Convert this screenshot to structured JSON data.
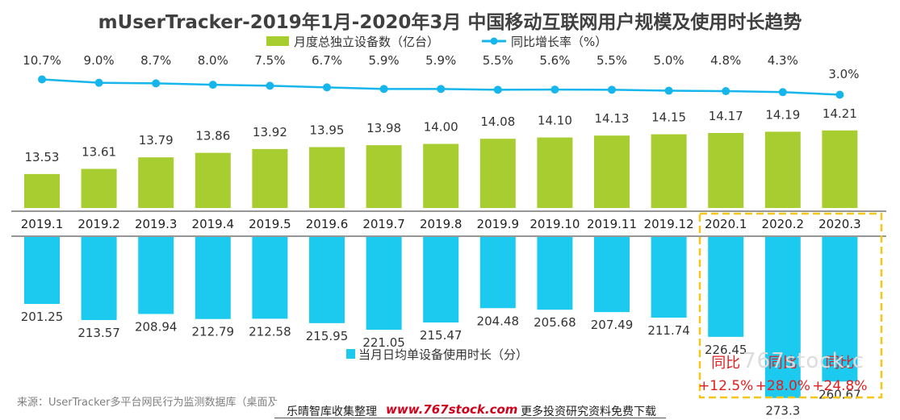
{
  "title": "mUserTracker-2019年1月-2020年3月 中国移动互联网用户规模及使用时长趋势",
  "source": "来源：UserTracker多平台网民行为监测数据库（桌面及",
  "footer": {
    "text1": "乐晴智库收集整理",
    "url": "www.767stock.com",
    "text2": "更多投资研究资料免费下载"
  },
  "watermark": "767stock.c",
  "colors": {
    "green": "#a8cd30",
    "blue": "#1ccaf0",
    "line": "#16b6ec",
    "highlight": "#f5c518",
    "red": "#e21d1d"
  },
  "chart_data": {
    "type": "bar",
    "categories": [
      "2019.1",
      "2019.2",
      "2019.3",
      "2019.4",
      "2019.5",
      "2019.6",
      "2019.7",
      "2019.8",
      "2019.9",
      "2019.10",
      "2019.11",
      "2019.12",
      "2020.1",
      "2020.2",
      "2020.3"
    ],
    "series": [
      {
        "name": "月度总独立设备数（亿台）",
        "type": "bar",
        "values": [
          13.53,
          13.61,
          13.79,
          13.86,
          13.92,
          13.95,
          13.98,
          14.0,
          14.08,
          14.1,
          14.13,
          14.15,
          14.17,
          14.19,
          14.21
        ],
        "labels": [
          "13.53",
          "13.61",
          "13.79",
          "13.86",
          "13.92",
          "13.95",
          "13.98",
          "14.00",
          "14.08",
          "14.10",
          "14.13",
          "14.15",
          "14.17",
          "14.19",
          "14.21"
        ]
      },
      {
        "name": "同比增长率（%）",
        "type": "line",
        "values": [
          10.7,
          9.0,
          8.7,
          8.0,
          7.5,
          6.7,
          5.9,
          5.9,
          5.5,
          5.6,
          5.5,
          5.0,
          4.8,
          4.3,
          3.0
        ],
        "labels": [
          "10.7%",
          "9.0%",
          "8.7%",
          "8.0%",
          "7.5%",
          "6.7%",
          "5.9%",
          "5.9%",
          "5.5%",
          "5.6%",
          "5.5%",
          "5.0%",
          "4.8%",
          "4.3%",
          "3.0%"
        ]
      },
      {
        "name": "当月日均单设备使用时长（分）",
        "type": "bar",
        "values": [
          201.25,
          213.57,
          208.94,
          212.79,
          212.58,
          215.95,
          221.05,
          215.47,
          204.48,
          205.68,
          207.49,
          211.74,
          226.45,
          273.3,
          260.67
        ],
        "labels": [
          "201.25",
          "213.57",
          "208.94",
          "212.79",
          "212.58",
          "215.95",
          "221.05",
          "215.47",
          "204.48",
          "205.68",
          "207.49",
          "211.74",
          "226.45",
          "273.3",
          "260.67"
        ]
      }
    ],
    "annotations": [
      {
        "category": "2020.1",
        "line1": "同比",
        "line2": "+12.5%"
      },
      {
        "category": "2020.2",
        "line1": "同比",
        "line2": "+28.0%"
      },
      {
        "category": "2020.3",
        "line1": "同比",
        "line2": "+24.8%"
      }
    ]
  }
}
